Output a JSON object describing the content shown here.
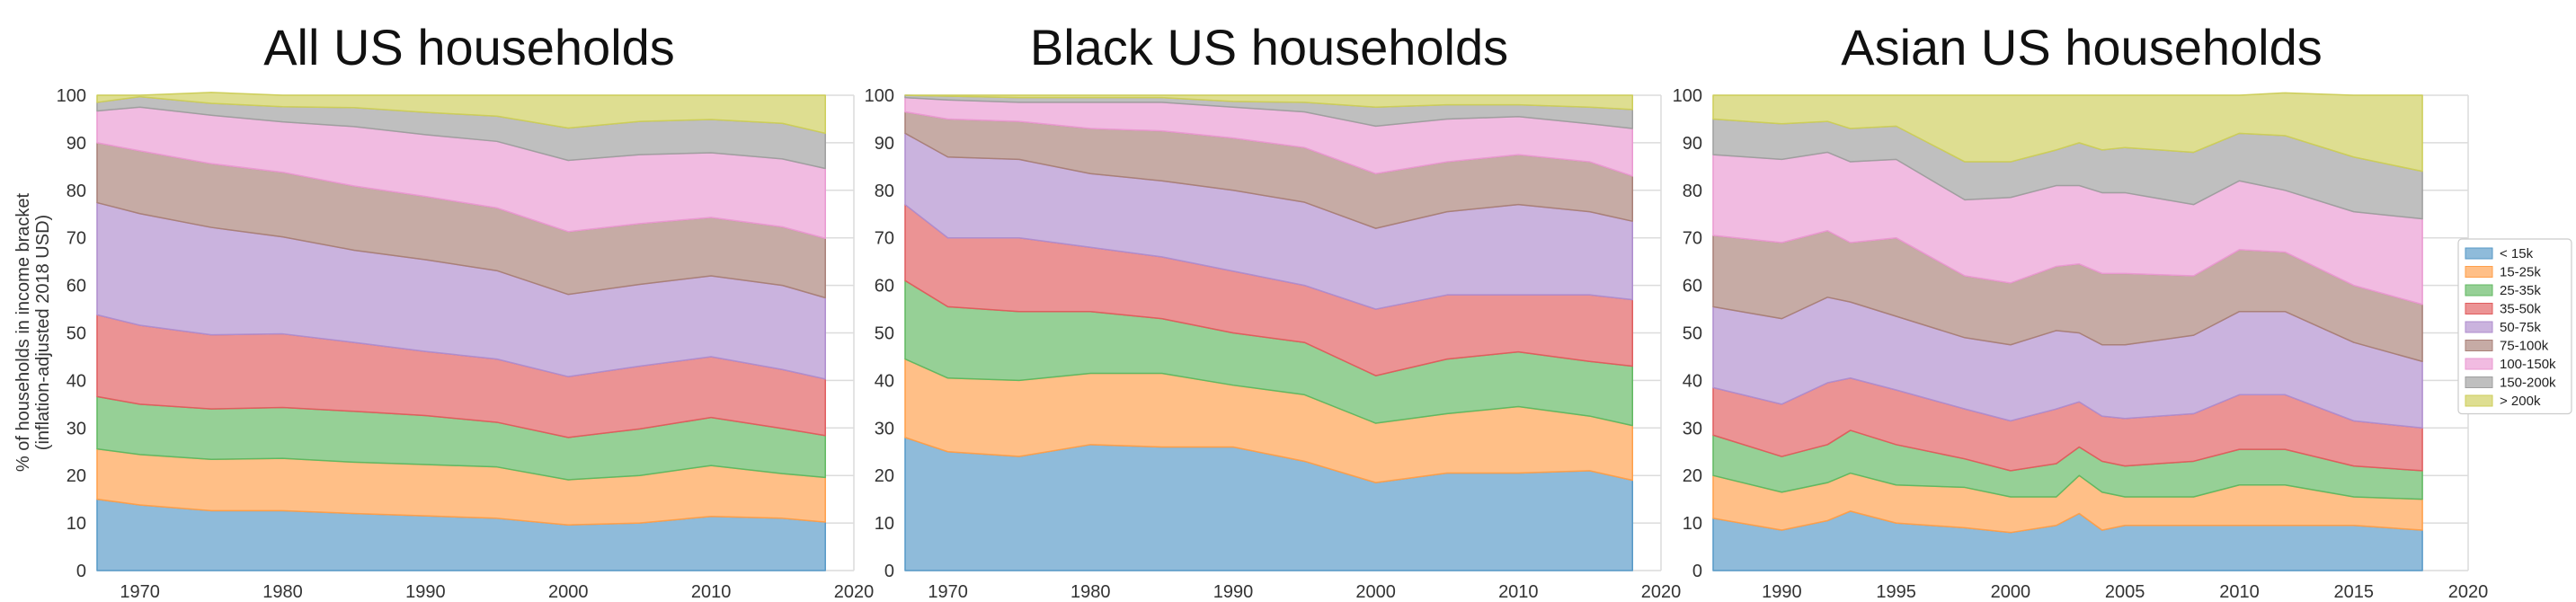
{
  "colors": {
    "< 15k": "#1f77b4",
    "15-25k": "#ff7f0e",
    "25-35k": "#2ca02c",
    "35-50k": "#d62728",
    "50-75k": "#9467bd",
    "75-100k": "#8c564b",
    "100-150k": "#e377c2",
    "150-200k": "#7f7f7f",
    "> 200k": "#bcbd22"
  },
  "ylabel_lines": [
    "% of households in income bracket",
    "(inflation-adjusted 2018 USD)"
  ],
  "legend": {
    "placement": "right",
    "entries": [
      "< 15k",
      "15-25k",
      "25-35k",
      "35-50k",
      "50-75k",
      "75-100k",
      "100-150k",
      "150-200k",
      "> 200k"
    ]
  },
  "chart_data": [
    {
      "type": "area",
      "stacked": true,
      "title": "All US households",
      "xlim": [
        1967,
        2020
      ],
      "ylim": [
        0,
        100
      ],
      "xticks": [
        1970,
        1980,
        1990,
        2000,
        2010,
        2020
      ],
      "yticks": [
        0,
        10,
        20,
        30,
        40,
        50,
        60,
        70,
        80,
        90,
        100
      ],
      "grid": true,
      "x": [
        1967,
        1970,
        1975,
        1980,
        1985,
        1990,
        1995,
        2000,
        2005,
        2010,
        2015,
        2018
      ],
      "series": [
        {
          "name": "< 15k",
          "values": [
            15.0,
            13.8,
            12.6,
            12.6,
            12.0,
            11.5,
            11.0,
            9.6,
            10.0,
            11.4,
            11.0,
            10.2
          ]
        },
        {
          "name": "15-25k",
          "values": [
            10.6,
            10.6,
            10.8,
            11.0,
            10.8,
            10.8,
            10.8,
            9.5,
            10.0,
            10.7,
            9.4,
            9.4
          ]
        },
        {
          "name": "25-35k",
          "values": [
            11.0,
            10.6,
            10.6,
            10.7,
            10.7,
            10.3,
            9.4,
            8.9,
            9.8,
            10.1,
            9.5,
            8.8
          ]
        },
        {
          "name": "35-50k",
          "values": [
            17.2,
            16.6,
            15.6,
            15.5,
            14.5,
            13.5,
            13.3,
            12.8,
            13.2,
            12.8,
            12.4,
            11.9
          ]
        },
        {
          "name": "50-75k",
          "values": [
            23.6,
            23.5,
            22.6,
            20.4,
            19.4,
            19.3,
            18.6,
            17.3,
            17.2,
            17.0,
            17.7,
            17.1
          ]
        },
        {
          "name": "75-100k",
          "values": [
            12.6,
            13.2,
            13.4,
            13.6,
            13.5,
            13.3,
            13.2,
            13.2,
            12.8,
            12.3,
            12.3,
            12.5
          ]
        },
        {
          "name": "100-150k",
          "values": [
            6.7,
            9.2,
            10.2,
            10.6,
            12.5,
            13.0,
            14.0,
            15.0,
            14.5,
            13.6,
            14.3,
            14.7
          ]
        },
        {
          "name": "150-200k",
          "values": [
            1.8,
            2.2,
            2.5,
            3.2,
            4.0,
            4.7,
            5.3,
            6.8,
            7.0,
            7.0,
            7.5,
            7.4
          ]
        },
        {
          "name": "> 200k",
          "values": [
            1.5,
            0.3,
            2.3,
            2.4,
            2.6,
            3.6,
            4.4,
            6.9,
            5.5,
            5.1,
            5.9,
            8.0
          ]
        }
      ]
    },
    {
      "type": "area",
      "stacked": true,
      "title": "Black US households",
      "xlim": [
        1967,
        2020
      ],
      "ylim": [
        0,
        100
      ],
      "xticks": [
        1970,
        1980,
        1990,
        2000,
        2010,
        2020
      ],
      "yticks": [
        0,
        10,
        20,
        30,
        40,
        50,
        60,
        70,
        80,
        90,
        100
      ],
      "grid": true,
      "x": [
        1967,
        1970,
        1975,
        1980,
        1985,
        1990,
        1995,
        2000,
        2005,
        2010,
        2015,
        2018
      ],
      "series": [
        {
          "name": "< 15k",
          "values": [
            28.0,
            25.0,
            24.0,
            26.5,
            26.0,
            26.0,
            23.0,
            18.5,
            20.5,
            20.5,
            21.0,
            19.0
          ]
        },
        {
          "name": "15-25k",
          "values": [
            16.5,
            15.5,
            16.0,
            15.0,
            15.5,
            13.0,
            14.0,
            12.5,
            12.5,
            14.0,
            11.5,
            11.5
          ]
        },
        {
          "name": "25-35k",
          "values": [
            16.5,
            15.0,
            14.5,
            13.0,
            11.5,
            11.0,
            11.0,
            10.0,
            11.5,
            11.5,
            11.5,
            12.5
          ]
        },
        {
          "name": "35-50k",
          "values": [
            16.0,
            14.5,
            15.5,
            13.5,
            13.0,
            13.0,
            12.0,
            14.0,
            13.5,
            12.0,
            14.0,
            14.0
          ]
        },
        {
          "name": "50-75k",
          "values": [
            15.0,
            17.0,
            16.5,
            15.5,
            16.0,
            17.0,
            17.5,
            17.0,
            17.5,
            19.0,
            17.5,
            16.5
          ]
        },
        {
          "name": "75-100k",
          "values": [
            4.5,
            8.0,
            8.0,
            9.5,
            10.5,
            11.0,
            11.5,
            11.5,
            10.5,
            10.5,
            10.5,
            9.5
          ]
        },
        {
          "name": "100-150k",
          "values": [
            3.0,
            4.0,
            4.0,
            5.5,
            6.0,
            6.5,
            7.5,
            10.0,
            9.0,
            8.0,
            8.0,
            10.0
          ]
        },
        {
          "name": "150-200k",
          "values": [
            0.5,
            0.8,
            1.0,
            1.0,
            1.0,
            1.2,
            2.0,
            4.0,
            3.0,
            2.5,
            3.5,
            4.0
          ]
        },
        {
          "name": "> 200k",
          "values": [
            0.0,
            0.2,
            0.5,
            0.5,
            0.5,
            1.3,
            1.5,
            2.5,
            2.0,
            2.0,
            2.5,
            3.0
          ]
        }
      ]
    },
    {
      "type": "area",
      "stacked": true,
      "title": "Asian US households",
      "xlim": [
        1987,
        2020
      ],
      "ylim": [
        0,
        100
      ],
      "xticks": [
        1990,
        1995,
        2000,
        2005,
        2010,
        2015,
        2020
      ],
      "yticks": [
        0,
        10,
        20,
        30,
        40,
        50,
        60,
        70,
        80,
        90,
        100
      ],
      "grid": true,
      "x": [
        1987,
        1990,
        1992,
        1993,
        1995,
        1998,
        2000,
        2002,
        2003,
        2004,
        2005,
        2008,
        2010,
        2012,
        2015,
        2018
      ],
      "series": [
        {
          "name": "< 15k",
          "values": [
            11.0,
            8.5,
            10.5,
            12.5,
            10.0,
            9.0,
            8.0,
            9.5,
            12.0,
            8.5,
            9.5,
            9.5,
            9.5,
            9.5,
            9.5,
            8.5
          ]
        },
        {
          "name": "15-25k",
          "values": [
            9.0,
            8.0,
            8.0,
            8.0,
            8.0,
            8.5,
            7.5,
            6.0,
            8.0,
            8.0,
            6.0,
            6.0,
            8.5,
            8.5,
            6.0,
            6.5
          ]
        },
        {
          "name": "25-35k",
          "values": [
            8.5,
            7.5,
            8.0,
            9.0,
            8.5,
            6.0,
            5.5,
            7.0,
            6.0,
            6.5,
            6.5,
            7.5,
            7.5,
            7.5,
            6.5,
            6.0
          ]
        },
        {
          "name": "35-50k",
          "values": [
            10.0,
            11.0,
            13.0,
            11.0,
            11.5,
            10.5,
            10.5,
            11.5,
            9.5,
            9.5,
            10.0,
            10.0,
            11.5,
            11.5,
            9.5,
            9.0
          ]
        },
        {
          "name": "50-75k",
          "values": [
            17.0,
            18.0,
            18.0,
            16.0,
            15.5,
            15.0,
            16.0,
            16.5,
            14.5,
            15.0,
            15.5,
            16.5,
            17.5,
            17.5,
            16.5,
            14.0
          ]
        },
        {
          "name": "75-100k",
          "values": [
            15.0,
            16.0,
            14.0,
            12.5,
            16.5,
            13.0,
            13.0,
            13.5,
            14.5,
            15.0,
            15.0,
            12.5,
            13.0,
            12.5,
            12.0,
            12.0
          ]
        },
        {
          "name": "100-150k",
          "values": [
            17.0,
            17.5,
            16.5,
            17.0,
            16.5,
            16.0,
            18.0,
            17.0,
            16.5,
            17.0,
            17.0,
            15.0,
            14.5,
            13.0,
            15.5,
            18.0
          ]
        },
        {
          "name": "150-200k",
          "values": [
            7.5,
            7.5,
            6.5,
            7.0,
            7.0,
            8.0,
            7.5,
            7.5,
            9.0,
            9.0,
            9.5,
            11.0,
            10.0,
            11.5,
            11.5,
            10.0
          ]
        },
        {
          "name": "> 200k",
          "values": [
            5.0,
            6.0,
            5.5,
            7.0,
            6.5,
            14.0,
            14.0,
            11.5,
            10.0,
            11.5,
            11.0,
            12.0,
            8.0,
            9.0,
            13.0,
            16.0
          ]
        }
      ]
    }
  ]
}
